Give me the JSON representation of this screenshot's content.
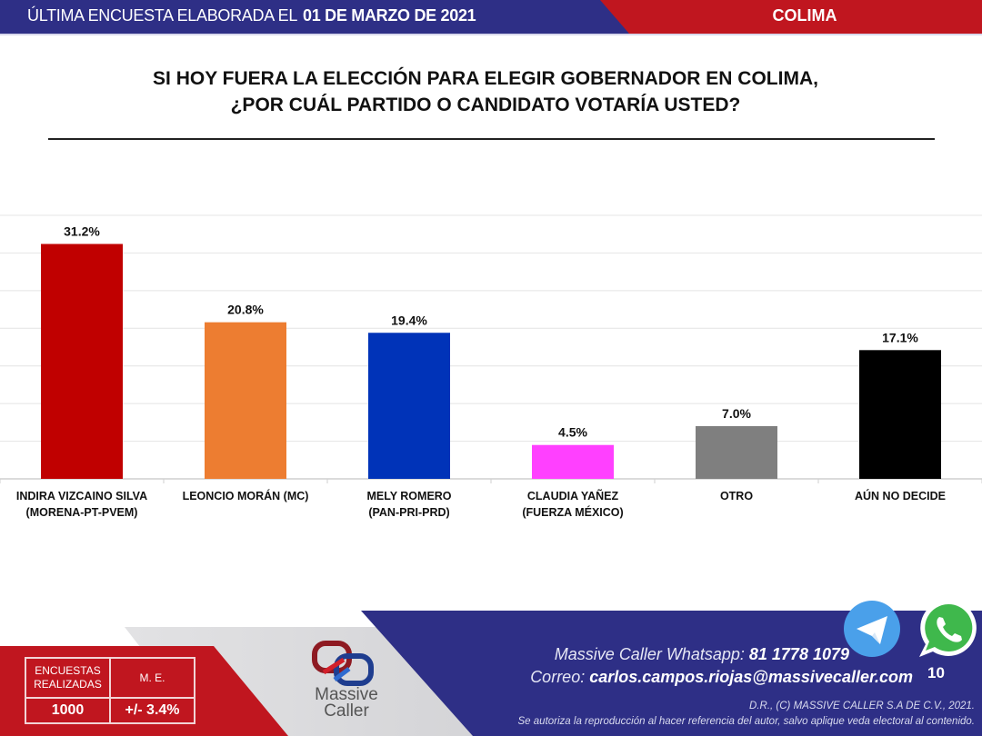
{
  "header": {
    "prefix": "ÚLTIMA ENCUESTA ELABORADA EL",
    "date": "01 DE MARZO DE 2021",
    "state": "COLIMA"
  },
  "question": {
    "line1": "SI HOY FUERA LA ELECCIÓN PARA ELEGIR GOBERNADOR EN COLIMA,",
    "line2": "¿POR CUÁL PARTIDO O CANDIDATO VOTARÍA USTED?"
  },
  "chart_data": {
    "type": "bar",
    "title": "SI HOY FUERA LA ELECCIÓN PARA ELEGIR GOBERNADOR EN COLIMA, ¿POR CUÁL PARTIDO O CANDIDATO VOTARÍA USTED?",
    "xlabel": "",
    "ylabel": "",
    "ylim": [
      0,
      35
    ],
    "grid": true,
    "y_gridline_step": 5,
    "categories": [
      [
        "INDIRA VIZCAINO SILVA",
        "(MORENA-PT-PVEM)"
      ],
      [
        "LEONCIO MORÁN (MC)"
      ],
      [
        "MELY ROMERO",
        "(PAN-PRI-PRD)"
      ],
      [
        "CLAUDIA YAÑEZ",
        "(FUERZA MÉXICO)"
      ],
      [
        "OTRO"
      ],
      [
        "AÚN NO DECIDE"
      ]
    ],
    "values": [
      31.2,
      20.8,
      19.4,
      4.5,
      7.0,
      17.1
    ],
    "value_labels": [
      "31.2%",
      "20.8%",
      "19.4%",
      "4.5%",
      "7.0%",
      "17.1%"
    ],
    "colors": [
      "#c00000",
      "#ed7d31",
      "#0033b8",
      "#ff40ff",
      "#7f7f7f",
      "#000000"
    ]
  },
  "stats": {
    "surveys_label": "ENCUESTAS REALIZADAS",
    "surveys_label_l1": "ENCUESTAS",
    "surveys_label_l2": "REALIZADAS",
    "surveys_value": "1000",
    "moe_label": "M. E.",
    "moe_value": "+/- 3.4%"
  },
  "brand": {
    "name_l1": "Massive",
    "name_l2": "Caller"
  },
  "contact": {
    "whatsapp_label": "Massive Caller Whatsapp:",
    "whatsapp_number": "81 1778 1079",
    "email_label": "Correo:",
    "email": "carlos.campos.riojas@massivecaller.com"
  },
  "legal": {
    "line1": "D.R., (C) MASSIVE CALLER S.A DE C.V., 2021.",
    "line2": "Se autoriza la reproducción al hacer referencia del autor, salvo aplique veda electoral al contenido."
  },
  "page_number": "10",
  "icons": {
    "telegram": "telegram-icon",
    "whatsapp": "whatsapp-icon"
  },
  "colors": {
    "header_blue": "#2e2f86",
    "header_red": "#c0161f",
    "footer_blue": "#2e2f86",
    "footer_red": "#c0161f",
    "footer_gray": "#dcdcde",
    "telegram": "#4aa0ea",
    "whatsapp": "#3fb84c"
  }
}
